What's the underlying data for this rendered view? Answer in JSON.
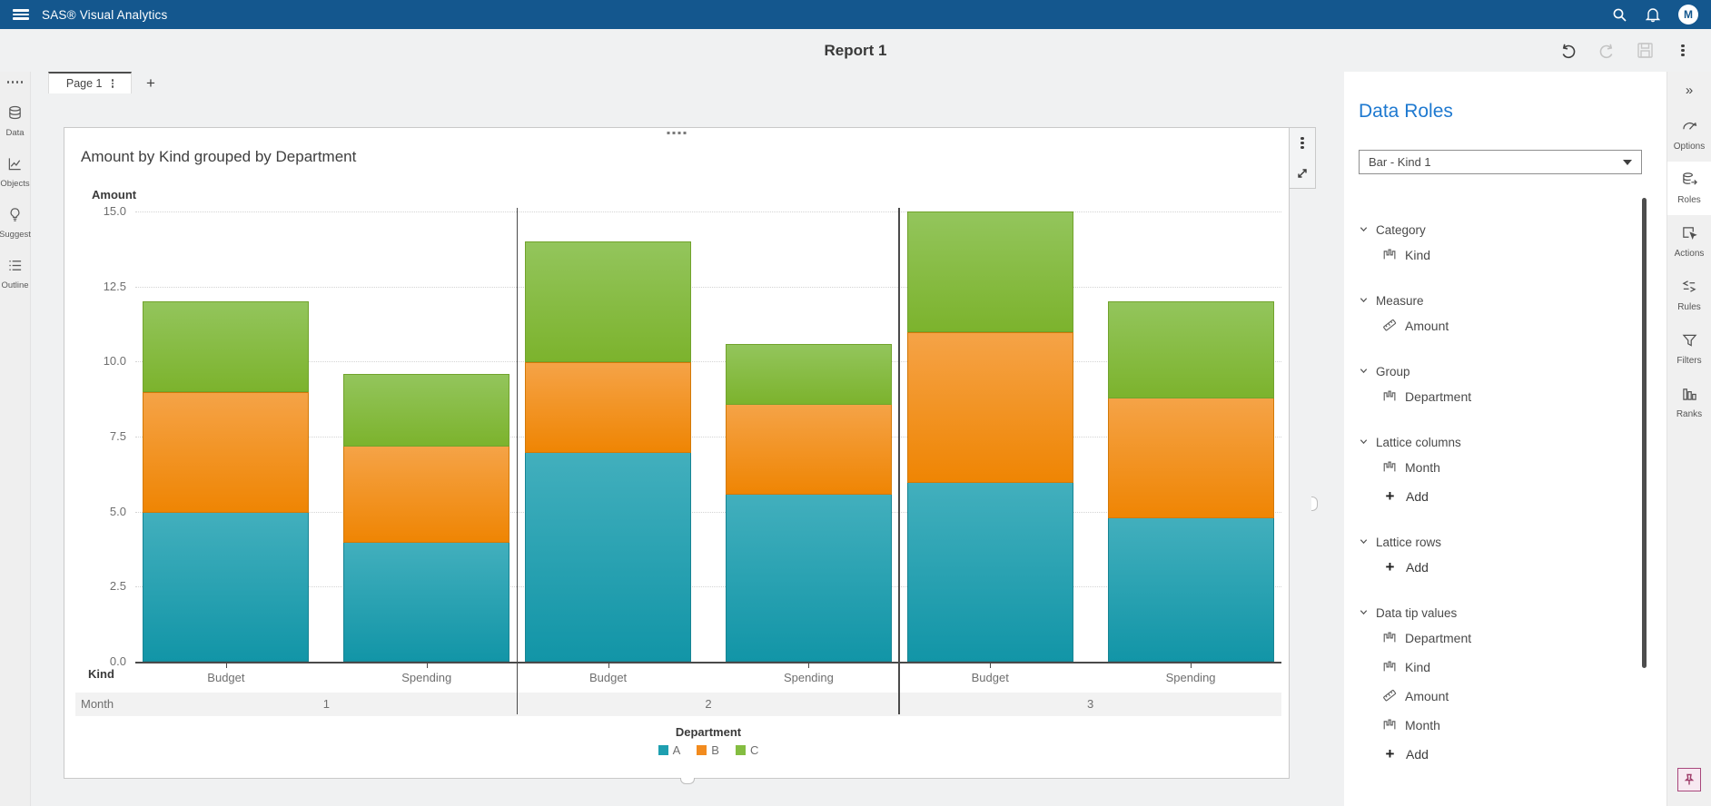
{
  "header": {
    "app_title": "SAS® Visual Analytics",
    "avatar_initial": "M"
  },
  "toolbar": {
    "report_title": "Report 1"
  },
  "left_rail": {
    "items": [
      {
        "label": "Data"
      },
      {
        "label": "Objects"
      },
      {
        "label": "Suggest"
      },
      {
        "label": "Outline"
      }
    ]
  },
  "tabs": {
    "active_tab": "Page 1",
    "add_label": "+"
  },
  "chart_data": {
    "type": "bar",
    "stacked": true,
    "title": "Amount by Kind grouped by Department",
    "ylabel": "Amount",
    "xlabel": "Kind",
    "lattice_label": "Month",
    "ylim": [
      0,
      15
    ],
    "yticks": [
      "15.0",
      "12.5",
      "10.0",
      "7.5",
      "5.0",
      "2.5",
      "0.0"
    ],
    "grid": "dotted-horizontal",
    "months": [
      "1",
      "2",
      "3"
    ],
    "kinds": [
      "Budget",
      "Spending"
    ],
    "legend_title": "Department",
    "legend_position": "bottom",
    "series": [
      {
        "name": "A",
        "color": "#1e9fb0",
        "color_top": "#42afbd",
        "color_bottom": "#1295a7",
        "border": "#178493",
        "values": [
          5.0,
          4.0,
          7.0,
          5.6,
          6.0,
          4.8
        ]
      },
      {
        "name": "B",
        "color": "#f28b1e",
        "color_top": "#f5a347",
        "color_bottom": "#ef8503",
        "border": "#d37907",
        "values": [
          4.0,
          3.2,
          3.0,
          3.0,
          5.0,
          4.0
        ]
      },
      {
        "name": "C",
        "color": "#84bd41",
        "color_top": "#93c55c",
        "color_bottom": "#7cb32d",
        "border": "#71a32c",
        "values": [
          3.0,
          2.4,
          4.0,
          2.0,
          4.0,
          3.2
        ]
      }
    ],
    "bar_totals_note": "values are per [month1-Budget, month1-Spending, month2-Budget, month2-Spending, month3-Budget, month3-Spending]"
  },
  "data_roles": {
    "panel_title": "Data Roles",
    "object_selector": "Bar - Kind 1",
    "sections": [
      {
        "label": "Category",
        "items": [
          {
            "label": "Kind",
            "icon": "category-field-icon"
          }
        ]
      },
      {
        "label": "Measure",
        "items": [
          {
            "label": "Amount",
            "icon": "measure-field-icon"
          }
        ]
      },
      {
        "label": "Group",
        "items": [
          {
            "label": "Department",
            "icon": "category-field-icon"
          }
        ]
      },
      {
        "label": "Lattice columns",
        "items": [
          {
            "label": "Month",
            "icon": "category-field-icon"
          }
        ],
        "add_label": "Add"
      },
      {
        "label": "Lattice rows",
        "items": [],
        "add_label": "Add"
      },
      {
        "label": "Data tip values",
        "items": [
          {
            "label": "Department",
            "icon": "category-field-icon"
          },
          {
            "label": "Kind",
            "icon": "category-field-icon"
          },
          {
            "label": "Amount",
            "icon": "measure-field-icon"
          },
          {
            "label": "Month",
            "icon": "category-field-icon"
          }
        ],
        "add_label": "Add"
      }
    ]
  },
  "right_rail": {
    "collapse_glyph": "»",
    "items": [
      {
        "label": "Options",
        "selected": false
      },
      {
        "label": "Roles",
        "selected": true
      },
      {
        "label": "Actions",
        "selected": false
      },
      {
        "label": "Rules",
        "selected": false
      },
      {
        "label": "Filters",
        "selected": false
      },
      {
        "label": "Ranks",
        "selected": false
      }
    ]
  },
  "colors": {
    "appbar": "#14578e",
    "canvas_bg": "#f0f1f2",
    "accent_blue": "#1e79d0",
    "pin_accent": "#a8487c",
    "lattice_separator": "#4a4a4a"
  }
}
